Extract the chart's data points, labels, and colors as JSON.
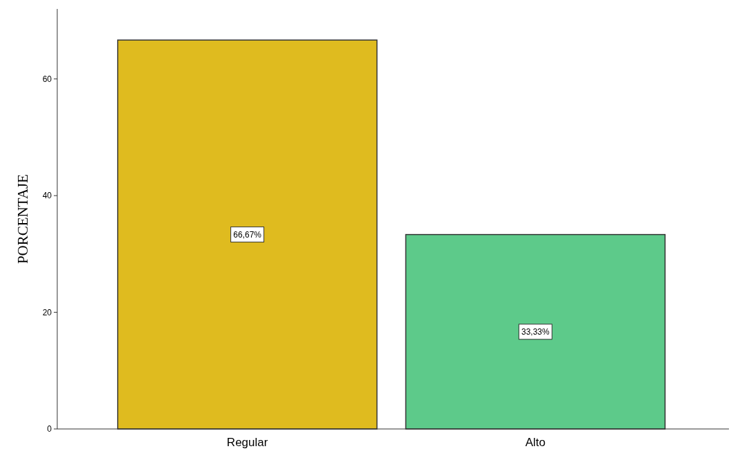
{
  "chart_data": {
    "type": "bar",
    "ylabel": "PORCENTAJE",
    "categories": [
      "Regular",
      "Alto"
    ],
    "values": [
      66.67,
      33.33
    ],
    "colors": [
      "#dfbb1f",
      "#5dca8a"
    ],
    "value_labels": [
      "66,67%",
      "33,33%"
    ],
    "ylim": [
      0,
      72
    ],
    "yticks": [
      0,
      20,
      40,
      60
    ],
    "grid": false
  }
}
